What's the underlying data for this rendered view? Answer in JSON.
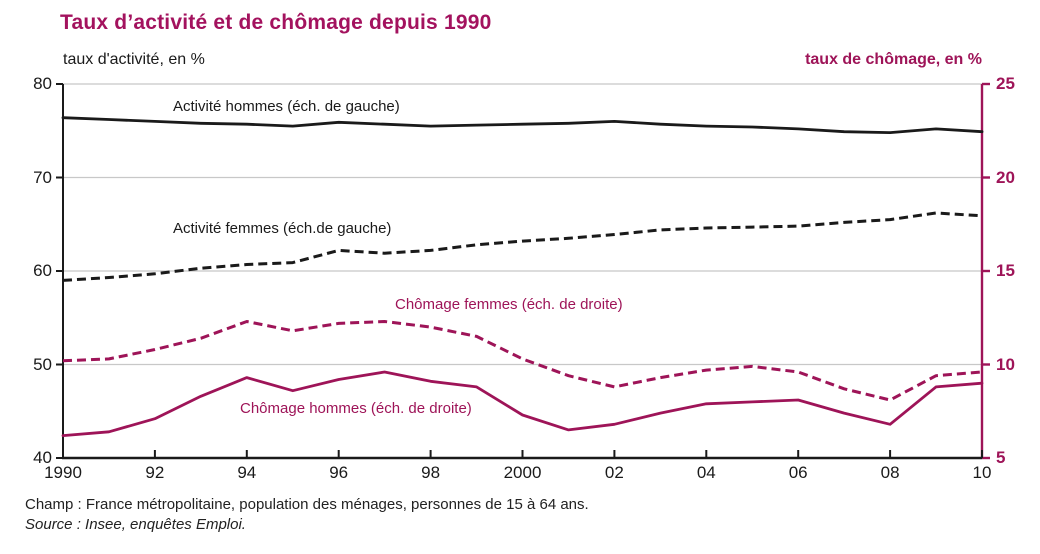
{
  "accent_color": "#9e1458",
  "title_color": "#a3125e",
  "black_color": "#1a1a1a",
  "grid_color": "#c8c8c8",
  "title": "Taux d’activité et de chômage depuis 1990",
  "footer": {
    "champ": "Champ : France métropolitaine, population des ménages, personnes de 15 à 64 ans.",
    "source": "Source : Insee, enquêtes Emploi."
  },
  "chart_data": {
    "type": "line",
    "title": "Taux d’activité et de chômage depuis 1990",
    "x": [
      1990,
      1991,
      1992,
      1993,
      1994,
      1995,
      1996,
      1997,
      1998,
      1999,
      2000,
      2001,
      2002,
      2003,
      2004,
      2005,
      2006,
      2007,
      2008,
      2009,
      2010
    ],
    "x_ticks": [
      {
        "year": 1990,
        "label": "1990"
      },
      {
        "year": 1992,
        "label": "92"
      },
      {
        "year": 1994,
        "label": "94"
      },
      {
        "year": 1996,
        "label": "96"
      },
      {
        "year": 1998,
        "label": "98"
      },
      {
        "year": 2000,
        "label": "2000"
      },
      {
        "year": 2002,
        "label": "02"
      },
      {
        "year": 2004,
        "label": "04"
      },
      {
        "year": 2006,
        "label": "06"
      },
      {
        "year": 2008,
        "label": "08"
      },
      {
        "year": 2010,
        "label": "10"
      }
    ],
    "left_axis": {
      "label": "taux d'activité, en %",
      "min": 40,
      "max": 80,
      "ticks": [
        40,
        50,
        60,
        70,
        80
      ]
    },
    "right_axis": {
      "label": "taux de chômage, en %",
      "min": 5,
      "max": 25,
      "ticks": [
        5,
        10,
        15,
        20,
        25
      ]
    },
    "grid": "horizontal",
    "legend_position": "inline-labels",
    "series": [
      {
        "name": "Activité hommes (éch. de gauche)",
        "axis": "left",
        "style": "solid",
        "color": "#1a1a1a",
        "values": [
          76.4,
          76.2,
          76.0,
          75.8,
          75.7,
          75.5,
          75.9,
          75.7,
          75.5,
          75.6,
          75.7,
          75.8,
          76.0,
          75.7,
          75.5,
          75.4,
          75.2,
          74.9,
          74.8,
          75.2,
          74.9
        ]
      },
      {
        "name": "Activité femmes (éch.de gauche)",
        "axis": "left",
        "style": "dashed",
        "color": "#1a1a1a",
        "values": [
          59.0,
          59.3,
          59.7,
          60.3,
          60.7,
          60.9,
          62.2,
          61.9,
          62.2,
          62.8,
          63.2,
          63.5,
          63.9,
          64.4,
          64.6,
          64.7,
          64.8,
          65.2,
          65.5,
          66.2,
          65.9
        ]
      },
      {
        "name": "Chômage femmes (éch. de droite)",
        "axis": "right",
        "style": "dashed",
        "color": "#9e1458",
        "values": [
          10.2,
          10.3,
          10.8,
          11.4,
          12.3,
          11.8,
          12.2,
          12.3,
          12.0,
          11.5,
          10.3,
          9.4,
          8.8,
          9.3,
          9.7,
          9.9,
          9.6,
          8.7,
          8.1,
          9.4,
          9.6
        ]
      },
      {
        "name": "Chômage hommes (éch. de droite)",
        "axis": "right",
        "style": "solid",
        "color": "#9e1458",
        "values": [
          6.2,
          6.4,
          7.1,
          8.3,
          9.3,
          8.6,
          9.2,
          9.6,
          9.1,
          8.8,
          7.3,
          6.5,
          6.8,
          7.4,
          7.9,
          8.0,
          8.1,
          7.4,
          6.8,
          8.8,
          9.0
        ]
      }
    ]
  }
}
